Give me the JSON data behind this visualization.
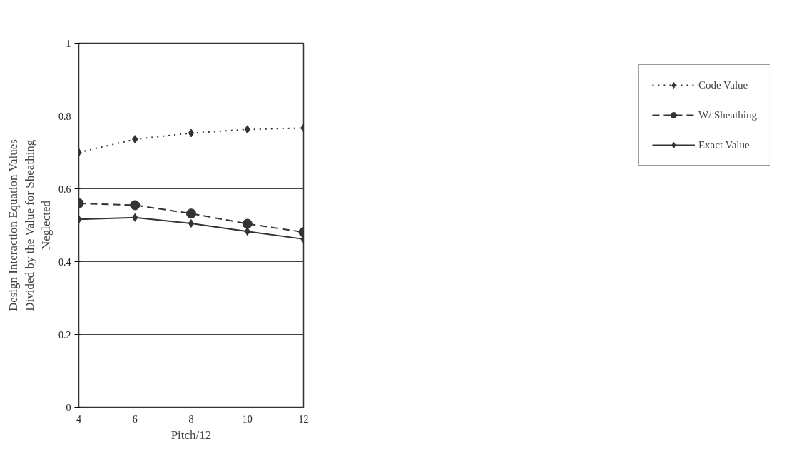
{
  "chart_data": {
    "type": "line",
    "xlabel": "Pitch/12",
    "ylabel": "Design Interaction Equation Values\nDivided by the Value for Sheathing\nNeglected",
    "x": [
      4,
      6,
      8,
      10,
      12
    ],
    "xlim": [
      4,
      12
    ],
    "xticks": [
      4,
      6,
      8,
      10,
      12
    ],
    "ylim": [
      0,
      1
    ],
    "yticks": [
      0,
      0.2,
      0.4,
      0.6,
      0.8,
      1
    ],
    "grid": "y",
    "legend": "right",
    "series": [
      {
        "name": "Code Value",
        "color": "#333333",
        "values": [
          0.7,
          0.736,
          0.753,
          0.763,
          0.767
        ],
        "line_style": "dotted",
        "marker": "diamond"
      },
      {
        "name": "W/ Sheathing",
        "color": "#333333",
        "values": [
          0.56,
          0.555,
          0.532,
          0.504,
          0.481
        ],
        "line_style": "dashed",
        "marker": "circle"
      },
      {
        "name": "Exact Value",
        "color": "#333333",
        "values": [
          0.516,
          0.521,
          0.505,
          0.483,
          0.462
        ],
        "line_style": "solid",
        "marker": "diamond"
      }
    ]
  }
}
